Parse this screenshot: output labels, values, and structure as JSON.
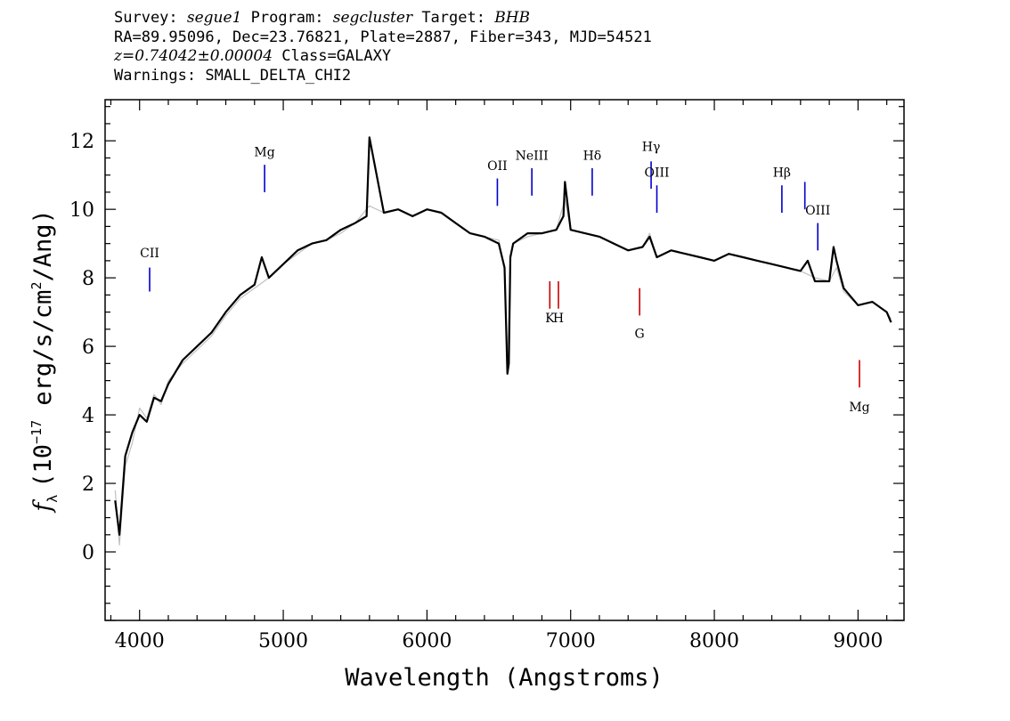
{
  "header": {
    "line1": {
      "survey_prefix": "Survey: ",
      "survey": "segue1",
      "program_prefix": " Program: ",
      "program": "segcluster",
      "target_prefix": " Target: ",
      "target": "BHB"
    },
    "line2": "RA=89.95096, Dec=23.76821, Plate=2887, Fiber=343, MJD=54521",
    "line3": {
      "z": "z=0.74042±0.00004",
      "class": " Class=GALAXY"
    },
    "line4": "Warnings: SMALL_DELTA_CHI2"
  },
  "chart_data": {
    "type": "line",
    "xlabel": "Wavelength (Angstroms)",
    "ylabel": "f_λ (10^-17 erg/s/cm^2/Ang)",
    "ylabel_parts": {
      "f": "f",
      "lambda": "λ",
      "pre": "(10",
      "exp": "−17",
      "mid": " erg/s/cm",
      "exp2": "2",
      "post": "/Ang)"
    },
    "xlim": [
      3760,
      9320
    ],
    "ylim": [
      -2.0,
      13.2
    ],
    "x_ticks": [
      4000,
      5000,
      6000,
      7000,
      8000,
      9000
    ],
    "y_ticks": [
      0,
      2,
      4,
      6,
      8,
      10,
      12
    ],
    "grid": false,
    "series": [
      {
        "role": "flux (raw)",
        "color": "#c0c0c0",
        "x": [
          3830,
          3860,
          3900,
          3950,
          4000,
          4050,
          4100,
          4150,
          4200,
          4300,
          4400,
          4500,
          4600,
          4700,
          4800,
          4900,
          5000,
          5100,
          5200,
          5300,
          5400,
          5500,
          5600,
          5700,
          5800,
          5900,
          6000,
          6100,
          6200,
          6300,
          6400,
          6500,
          6540,
          6560,
          6580,
          6600,
          6700,
          6800,
          6900,
          6960,
          7000,
          7100,
          7200,
          7300,
          7400,
          7500,
          7550,
          7600,
          7700,
          7800,
          7900,
          8000,
          8100,
          8200,
          8300,
          8400,
          8500,
          8600,
          8700,
          8800,
          8850,
          8900,
          9000,
          9100,
          9200,
          9230
        ],
        "y": [
          1.8,
          0.2,
          2.5,
          3.2,
          4.2,
          3.9,
          4.6,
          4.3,
          5.0,
          5.5,
          5.9,
          6.3,
          6.9,
          7.4,
          7.7,
          8.0,
          8.4,
          8.7,
          9.0,
          9.1,
          9.3,
          9.6,
          10.1,
          9.9,
          10.0,
          9.8,
          10.0,
          9.9,
          9.6,
          9.3,
          9.2,
          9.1,
          8.2,
          5.2,
          8.5,
          9.0,
          9.2,
          9.3,
          9.4,
          10.3,
          9.4,
          9.3,
          9.2,
          9.0,
          8.8,
          8.9,
          9.3,
          8.6,
          8.8,
          8.7,
          8.6,
          8.5,
          8.7,
          8.6,
          8.5,
          8.4,
          8.3,
          8.2,
          8.0,
          7.9,
          8.3,
          7.6,
          7.2,
          7.3,
          7.0,
          6.8
        ]
      },
      {
        "role": "flux (smoothed)",
        "color": "#000000",
        "x": [
          3830,
          3860,
          3900,
          3950,
          4000,
          4050,
          4100,
          4150,
          4200,
          4300,
          4400,
          4500,
          4600,
          4700,
          4800,
          4850,
          4900,
          5000,
          5100,
          5200,
          5300,
          5400,
          5500,
          5580,
          5600,
          5700,
          5800,
          5900,
          6000,
          6100,
          6200,
          6300,
          6400,
          6500,
          6540,
          6560,
          6570,
          6580,
          6600,
          6700,
          6800,
          6900,
          6950,
          6960,
          7000,
          7100,
          7200,
          7300,
          7400,
          7500,
          7550,
          7600,
          7700,
          7800,
          7900,
          8000,
          8100,
          8200,
          8300,
          8400,
          8500,
          8600,
          8650,
          8700,
          8800,
          8830,
          8850,
          8900,
          9000,
          9100,
          9200,
          9230
        ],
        "y": [
          1.5,
          0.5,
          2.8,
          3.5,
          4.0,
          3.8,
          4.5,
          4.4,
          4.9,
          5.6,
          6.0,
          6.4,
          7.0,
          7.5,
          7.8,
          8.6,
          8.0,
          8.4,
          8.8,
          9.0,
          9.1,
          9.4,
          9.6,
          9.8,
          12.1,
          9.9,
          10.0,
          9.8,
          10.0,
          9.9,
          9.6,
          9.3,
          9.2,
          9.0,
          8.3,
          5.2,
          5.5,
          8.6,
          9.0,
          9.3,
          9.3,
          9.4,
          9.8,
          10.8,
          9.4,
          9.3,
          9.2,
          9.0,
          8.8,
          8.9,
          9.2,
          8.6,
          8.8,
          8.7,
          8.6,
          8.5,
          8.7,
          8.6,
          8.5,
          8.4,
          8.3,
          8.2,
          8.5,
          7.9,
          7.9,
          8.9,
          8.5,
          7.7,
          7.2,
          7.3,
          7.0,
          6.7
        ]
      }
    ],
    "lines": [
      {
        "label": "CII",
        "x": 4070,
        "y0": 7.6,
        "y1": 8.3,
        "label_y": 8.6,
        "color": "#0000cc"
      },
      {
        "label": "Mg",
        "x": 4870,
        "y0": 10.5,
        "y1": 11.3,
        "label_y": 11.55,
        "color": "#0000cc"
      },
      {
        "label": "OII",
        "x": 6490,
        "y0": 10.1,
        "y1": 10.9,
        "label_y": 11.15,
        "color": "#0000cc"
      },
      {
        "label": "NeIII",
        "x": 6730,
        "y0": 10.4,
        "y1": 11.2,
        "label_y": 11.45,
        "color": "#0000cc"
      },
      {
        "label": "Hδ",
        "x": 7150,
        "y0": 10.4,
        "y1": 11.2,
        "label_y": 11.45,
        "color": "#0000cc"
      },
      {
        "label": "Hγ",
        "x": 7560,
        "y0": 10.6,
        "y1": 11.4,
        "label_y": 11.7,
        "color": "#0000cc"
      },
      {
        "label": "OIII",
        "x": 7600,
        "y0": 9.9,
        "y1": 10.7,
        "label_y": 10.95,
        "color": "#0000cc"
      },
      {
        "label": "Hβ",
        "x": 8470,
        "y0": 9.9,
        "y1": 10.7,
        "label_y": 10.95,
        "color": "#0000cc"
      },
      {
        "label": "OIII",
        "x": 8630,
        "y0": 10.0,
        "y1": 10.8,
        "label_y": null,
        "color": "#0000cc"
      },
      {
        "label": "OIII",
        "x": 8720,
        "y0": 8.8,
        "y1": 9.6,
        "label_y": 9.85,
        "color": "#0000cc"
      },
      {
        "label": "K",
        "x": 6855,
        "y0": 7.1,
        "y1": 7.9,
        "label_y": 6.7,
        "color": "#cc0000"
      },
      {
        "label": "H",
        "x": 6915,
        "y0": 7.1,
        "y1": 7.9,
        "label_y": 6.7,
        "color": "#cc0000"
      },
      {
        "label": "G",
        "x": 7480,
        "y0": 6.9,
        "y1": 7.7,
        "label_y": 6.25,
        "color": "#cc0000"
      },
      {
        "label": "Mg",
        "x": 9010,
        "y0": 4.8,
        "y1": 5.6,
        "label_y": 4.1,
        "color": "#cc0000"
      }
    ]
  }
}
